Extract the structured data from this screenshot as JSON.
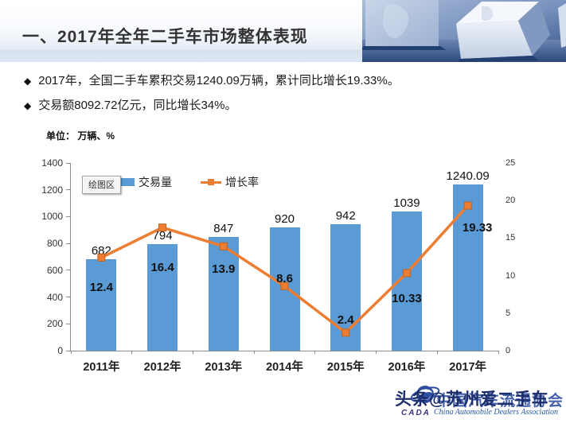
{
  "header": {
    "title": "一、2017年全年二手车市场整体表现"
  },
  "bullets": {
    "marker": "◆",
    "items": [
      "2017年，全国二手车累积交易1240.09万辆，累计同比增长19.33%。",
      "交易额8092.72亿元，同比增长34%。"
    ]
  },
  "chart_data": {
    "type": "bar",
    "title": "",
    "unit_label": "单位： 万辆、%",
    "plot_area_tooltip": "绘图区",
    "categories": [
      "2011年",
      "2012年",
      "2013年",
      "2014年",
      "2015年",
      "2016年",
      "2017年"
    ],
    "series": [
      {
        "name": "交易量",
        "kind": "bar",
        "axis": "left",
        "color": "#5B9BD5",
        "values": [
          682,
          794,
          847,
          920,
          942,
          1039,
          1240.09
        ],
        "labels": [
          "682",
          "794",
          "847",
          "920",
          "942",
          "1039",
          "1240.09"
        ]
      },
      {
        "name": "增长率",
        "kind": "line",
        "axis": "right",
        "color": "#ED7D31",
        "values": [
          12.4,
          16.4,
          13.9,
          8.6,
          2.4,
          10.33,
          19.33
        ],
        "labels": [
          "12.4",
          "16.4",
          "13.9",
          "8.6",
          "2.4",
          "10.33",
          "19.33"
        ]
      }
    ],
    "left_axis": {
      "min": 0,
      "max": 1400,
      "step": 200,
      "ticks": [
        "0",
        "200",
        "400",
        "600",
        "800",
        "1000",
        "1200",
        "1400"
      ]
    },
    "right_axis": {
      "min": 0,
      "max": 25,
      "step": 5,
      "ticks": [
        "0",
        "5",
        "10",
        "15",
        "20",
        "25"
      ]
    },
    "grid": false,
    "legend_position": "top-left-inside"
  },
  "footer": {
    "watermark": "头条@苏州爱二手车",
    "cada_cn": "中国汽车流通协会",
    "cada_en": "China Automobile Dealers Association",
    "cada_abbr": "CADA"
  },
  "colors": {
    "bar": "#5B9BD5",
    "line": "#ED7D31",
    "header_band": "#d7e2ef",
    "title_text": "#333333",
    "cada_blue": "#2d4da0"
  }
}
